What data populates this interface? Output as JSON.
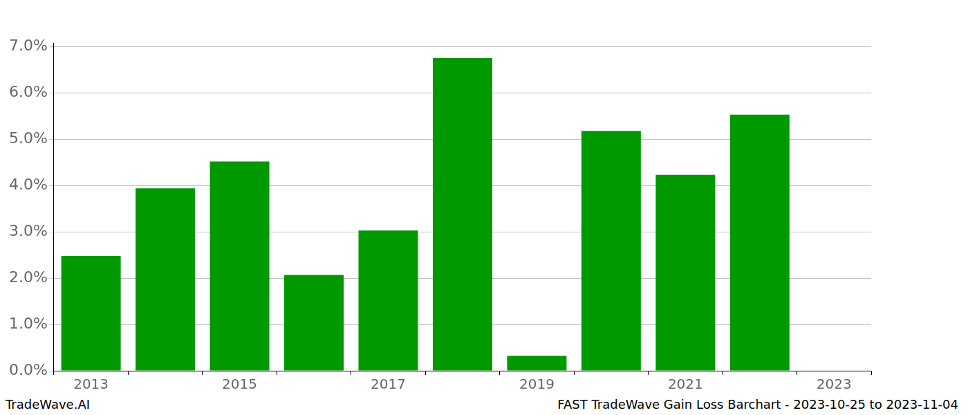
{
  "chart_data": {
    "type": "bar",
    "title": "FAST TradeWave Gain Loss Barchart - 2023-10-25 to 2023-11-04",
    "annotations": [
      "TradeWave.AI"
    ],
    "categories": [
      "2013",
      null,
      "2015",
      null,
      "2017",
      null,
      "2019",
      null,
      "2021",
      null,
      "2023"
    ],
    "values": [
      2.48,
      3.94,
      4.52,
      2.07,
      3.03,
      6.75,
      0.32,
      5.18,
      4.23,
      5.53,
      null
    ],
    "color": "#009900",
    "ylim": [
      0,
      7.08
    ],
    "yticks": [
      {
        "value": 0,
        "label": "0.0%"
      },
      {
        "value": 1,
        "label": "1.0%"
      },
      {
        "value": 2,
        "label": "2.0%"
      },
      {
        "value": 3,
        "label": "3.0%"
      },
      {
        "value": 4,
        "label": "4.0%"
      },
      {
        "value": 5,
        "label": "5.0%"
      },
      {
        "value": 6,
        "label": "6.0%"
      },
      {
        "value": 7,
        "label": "7.0%"
      }
    ],
    "grid": true
  }
}
